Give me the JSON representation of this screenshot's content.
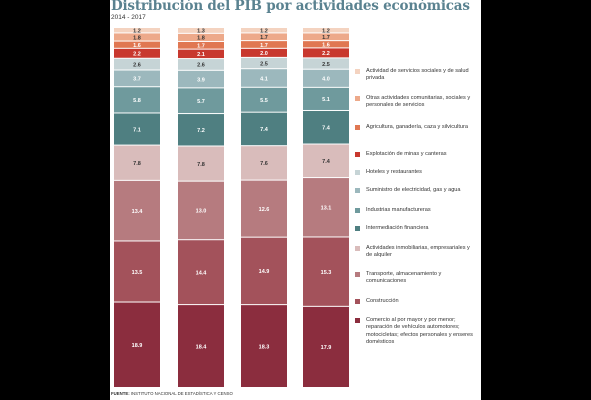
{
  "header": {
    "title": "Distribución del PIB por actividades económicas",
    "subtitle": "2014 - 2017"
  },
  "source": {
    "label": "FUENTE:",
    "text": "INSTITUTO NACIONAL DE ESTADÍSTICA Y CENSO"
  },
  "chart_data": {
    "type": "bar",
    "stacked": true,
    "categories": [
      "",
      "",
      "",
      ""
    ],
    "series": [
      {
        "name": "Comercio al por mayor y por menor; reparación de vehículos automotores; motocicletas; efectos personales y enseres domésticos",
        "color": "#8b2d3e",
        "values": [
          18.9,
          18.4,
          18.3,
          17.9
        ]
      },
      {
        "name": "Construcción",
        "color": "#a3525b",
        "values": [
          13.5,
          14.4,
          14.9,
          15.3
        ]
      },
      {
        "name": "Transporte, almacenamiento y comunicaciones",
        "color": "#b67b7f",
        "values": [
          13.4,
          13.0,
          12.6,
          13.1
        ]
      },
      {
        "name": "Actividades inmobiliarias, empresariales y de alquiler",
        "color": "#d9bcbb",
        "values": [
          7.8,
          7.8,
          7.6,
          7.4
        ]
      },
      {
        "name": "Intermediación financiera",
        "color": "#4f7f81",
        "values": [
          7.1,
          7.2,
          7.4,
          7.4
        ]
      },
      {
        "name": "Industrias manufactureras",
        "color": "#6f9a9d",
        "values": [
          5.8,
          5.7,
          5.5,
          5.1
        ]
      },
      {
        "name": "Suministro de electricidad, gas y agua",
        "color": "#9cb8bd",
        "values": [
          3.7,
          3.9,
          4.1,
          4.0
        ]
      },
      {
        "name": "Hoteles y restaurantes",
        "color": "#c6d4d6",
        "values": [
          2.6,
          2.6,
          2.5,
          2.5
        ]
      },
      {
        "name": "Explotación de minas y canteras",
        "color": "#c8382e",
        "values": [
          2.2,
          2.1,
          2.0,
          2.2
        ]
      },
      {
        "name": "Agricultura, ganadería, caza y silvicultura",
        "color": "#e07752",
        "values": [
          1.6,
          1.7,
          1.7,
          1.6
        ]
      },
      {
        "name": "Otras actividades comunitarias, sociales y personales de servicios",
        "color": "#eda98a",
        "values": [
          1.8,
          1.8,
          1.7,
          1.7
        ]
      },
      {
        "name": "Actividad de servicios sociales y de salud privada",
        "color": "#f4d3c0",
        "values": [
          1.2,
          1.3,
          1.2,
          1.2
        ]
      }
    ],
    "legend_order": [
      11,
      10,
      9,
      8,
      7,
      6,
      5,
      4,
      3,
      2,
      1,
      0
    ],
    "legend": "right"
  }
}
